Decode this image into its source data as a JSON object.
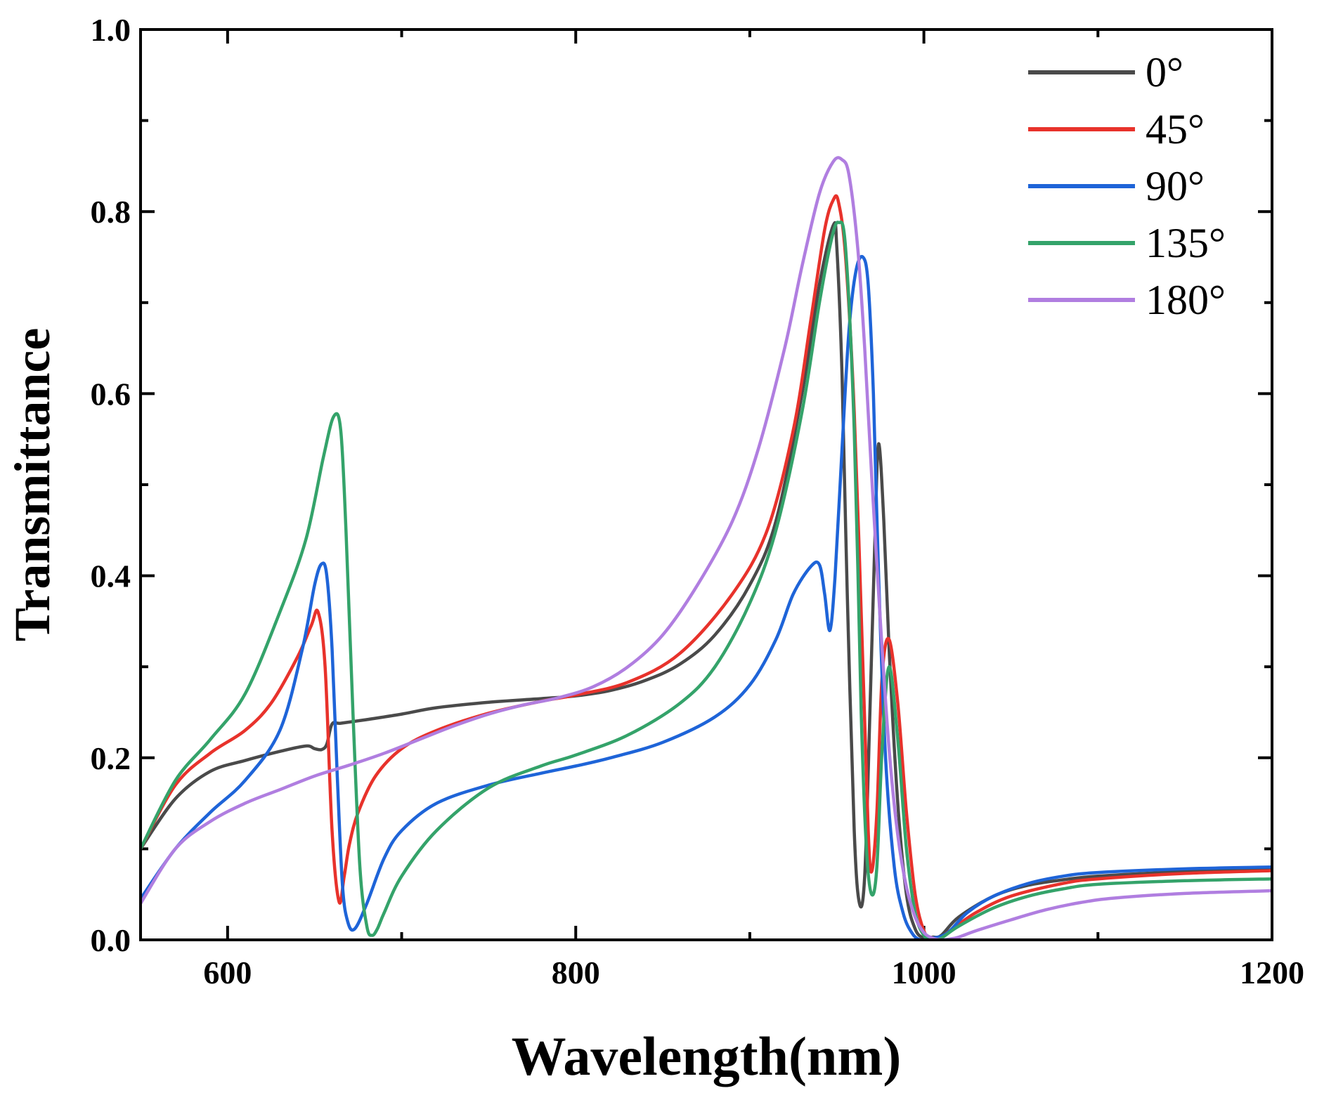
{
  "chart_data": {
    "type": "line",
    "title": "",
    "xlabel": "Wavelength(nm)",
    "ylabel": "Transmittance",
    "xlim": [
      550,
      1200
    ],
    "ylim": [
      0.0,
      1.0
    ],
    "xticks": [
      600,
      800,
      1000,
      1200
    ],
    "xtick_labels": [
      "600",
      "800",
      "1000",
      "1200"
    ],
    "yticks": [
      0.0,
      0.2,
      0.4,
      0.6,
      0.8,
      1.0
    ],
    "ytick_labels": [
      "0.0",
      "0.2",
      "0.4",
      "0.6",
      "0.8",
      "1.0"
    ],
    "grid": false,
    "legend_position": "top-right",
    "series": [
      {
        "name": "0°",
        "color": "#4a4a4a",
        "x": [
          550,
          570,
          590,
          610,
          630,
          645,
          650,
          654,
          657,
          660,
          665,
          680,
          700,
          720,
          750,
          780,
          800,
          820,
          840,
          860,
          880,
          900,
          915,
          930,
          940,
          948,
          950,
          953,
          956,
          960,
          963,
          966,
          969,
          972,
          974,
          977,
          980,
          985,
          990,
          995,
          1000,
          1005,
          1010,
          1020,
          1040,
          1060,
          1080,
          1100,
          1150,
          1200
        ],
        "y": [
          0.1,
          0.155,
          0.185,
          0.197,
          0.207,
          0.213,
          0.21,
          0.209,
          0.215,
          0.237,
          0.238,
          0.242,
          0.248,
          0.255,
          0.261,
          0.265,
          0.268,
          0.274,
          0.285,
          0.303,
          0.335,
          0.39,
          0.46,
          0.6,
          0.72,
          0.785,
          0.76,
          0.62,
          0.38,
          0.12,
          0.04,
          0.07,
          0.25,
          0.45,
          0.545,
          0.46,
          0.32,
          0.15,
          0.05,
          0.012,
          0.002,
          0.003,
          0.005,
          0.025,
          0.048,
          0.06,
          0.066,
          0.07,
          0.075,
          0.077
        ]
      },
      {
        "name": "45°",
        "color": "#e8322b",
        "x": [
          550,
          570,
          590,
          610,
          625,
          640,
          648,
          652,
          656,
          660,
          664,
          667,
          670,
          675,
          685,
          700,
          720,
          750,
          780,
          800,
          830,
          860,
          890,
          910,
          925,
          935,
          943,
          948,
          951,
          955,
          960,
          965,
          968,
          970,
          973,
          976,
          980,
          985,
          990,
          995,
          1000,
          1005,
          1010,
          1015,
          1030,
          1050,
          1080,
          1100,
          1150,
          1200
        ],
        "y": [
          0.1,
          0.17,
          0.205,
          0.23,
          0.26,
          0.31,
          0.345,
          0.36,
          0.3,
          0.12,
          0.042,
          0.07,
          0.105,
          0.14,
          0.18,
          0.21,
          0.23,
          0.249,
          0.262,
          0.269,
          0.283,
          0.315,
          0.38,
          0.45,
          0.56,
          0.68,
          0.78,
          0.813,
          0.81,
          0.75,
          0.58,
          0.3,
          0.12,
          0.075,
          0.14,
          0.29,
          0.33,
          0.26,
          0.14,
          0.05,
          0.01,
          0.0,
          0.003,
          0.01,
          0.03,
          0.048,
          0.062,
          0.067,
          0.073,
          0.076
        ]
      },
      {
        "name": "90°",
        "color": "#1e64d8",
        "x": [
          550,
          570,
          590,
          610,
          630,
          643,
          650,
          654,
          657,
          660,
          663,
          666,
          669,
          673,
          680,
          690,
          700,
          720,
          750,
          780,
          800,
          820,
          850,
          880,
          900,
          915,
          925,
          935,
          940,
          943,
          946,
          949,
          953,
          957,
          961,
          965,
          968,
          971,
          974,
          978,
          983,
          988,
          993,
          998,
          1005,
          1010,
          1015,
          1025,
          1040,
          1060,
          1080,
          1100,
          1150,
          1200
        ],
        "y": [
          0.045,
          0.1,
          0.14,
          0.175,
          0.23,
          0.32,
          0.39,
          0.413,
          0.4,
          0.32,
          0.18,
          0.06,
          0.02,
          0.012,
          0.04,
          0.09,
          0.12,
          0.15,
          0.17,
          0.183,
          0.191,
          0.2,
          0.217,
          0.245,
          0.28,
          0.33,
          0.38,
          0.41,
          0.412,
          0.38,
          0.34,
          0.4,
          0.54,
          0.67,
          0.735,
          0.75,
          0.72,
          0.6,
          0.4,
          0.2,
          0.08,
          0.03,
          0.008,
          0.0,
          0.002,
          0.004,
          0.01,
          0.03,
          0.048,
          0.062,
          0.07,
          0.074,
          0.078,
          0.08
        ]
      },
      {
        "name": "135°",
        "color": "#34a36a",
        "x": [
          550,
          570,
          590,
          610,
          630,
          645,
          655,
          661,
          665,
          668,
          672,
          676,
          680,
          683,
          686,
          690,
          700,
          720,
          750,
          780,
          800,
          830,
          860,
          880,
          900,
          915,
          930,
          940,
          947,
          951,
          955,
          960,
          964,
          967,
          970,
          973,
          976,
          980,
          985,
          990,
          995,
          1000,
          1005,
          1010,
          1020,
          1040,
          1060,
          1080,
          1100,
          1150,
          1200
        ],
        "y": [
          0.1,
          0.175,
          0.22,
          0.27,
          0.36,
          0.44,
          0.53,
          0.575,
          0.56,
          0.45,
          0.25,
          0.08,
          0.015,
          0.005,
          0.012,
          0.03,
          0.07,
          0.12,
          0.167,
          0.191,
          0.203,
          0.225,
          0.26,
          0.3,
          0.37,
          0.45,
          0.58,
          0.7,
          0.77,
          0.788,
          0.76,
          0.56,
          0.25,
          0.1,
          0.05,
          0.08,
          0.21,
          0.3,
          0.22,
          0.1,
          0.03,
          0.005,
          0.0,
          0.002,
          0.015,
          0.035,
          0.048,
          0.056,
          0.061,
          0.065,
          0.067
        ]
      },
      {
        "name": "180°",
        "color": "#b07ee0",
        "x": [
          550,
          570,
          590,
          610,
          630,
          650,
          670,
          690,
          710,
          730,
          750,
          770,
          790,
          810,
          830,
          850,
          870,
          890,
          905,
          920,
          930,
          940,
          948,
          953,
          957,
          962,
          966,
          970,
          975,
          980,
          985,
          990,
          995,
          1000,
          1005,
          1010,
          1015,
          1020,
          1030,
          1050,
          1070,
          1090,
          1110,
          1150,
          1200
        ],
        "y": [
          0.04,
          0.1,
          0.13,
          0.15,
          0.165,
          0.18,
          0.192,
          0.205,
          0.22,
          0.235,
          0.248,
          0.258,
          0.266,
          0.278,
          0.3,
          0.335,
          0.39,
          0.46,
          0.54,
          0.65,
          0.74,
          0.82,
          0.855,
          0.857,
          0.84,
          0.76,
          0.65,
          0.51,
          0.35,
          0.21,
          0.115,
          0.058,
          0.025,
          0.008,
          0.002,
          0.0,
          0.001,
          0.003,
          0.01,
          0.022,
          0.033,
          0.041,
          0.046,
          0.051,
          0.054
        ]
      }
    ]
  }
}
